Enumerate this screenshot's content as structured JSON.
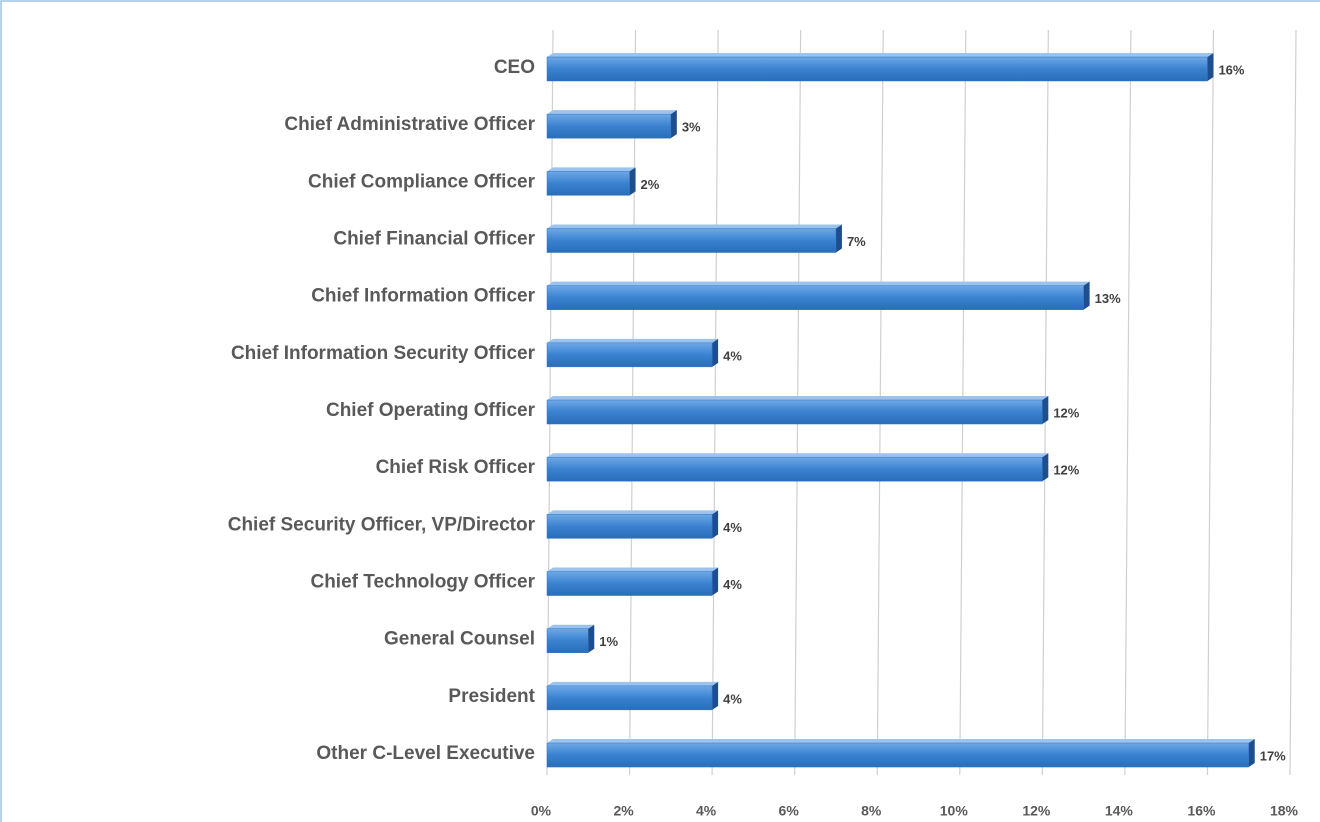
{
  "chart_data": {
    "type": "bar",
    "orientation": "horizontal",
    "categories": [
      "CEO",
      "Chief Administrative Officer",
      "Chief Compliance Officer",
      "Chief Financial Officer",
      "Chief Information Officer",
      "Chief Information Security Officer",
      "Chief Operating Officer",
      "Chief Risk Officer",
      "Chief Security Officer, VP/Director",
      "Chief Technology Officer",
      "General Counsel",
      "President",
      "Other C-Level Executive"
    ],
    "values": [
      16,
      3,
      2,
      7,
      13,
      4,
      12,
      12,
      4,
      4,
      1,
      4,
      17
    ],
    "value_labels": [
      "16%",
      "3%",
      "2%",
      "7%",
      "13%",
      "4%",
      "12%",
      "12%",
      "4%",
      "4%",
      "1%",
      "4%",
      "17%"
    ],
    "color": "#2e75c6",
    "xlim": [
      0,
      18
    ],
    "xticks": [
      {
        "value": 0,
        "label": "0%"
      },
      {
        "value": 2,
        "label": "2%"
      },
      {
        "value": 4,
        "label": "4%"
      },
      {
        "value": 6,
        "label": "6%"
      },
      {
        "value": 8,
        "label": "8%"
      },
      {
        "value": 10,
        "label": "10%"
      },
      {
        "value": 12,
        "label": "12%"
      },
      {
        "value": 14,
        "label": "14%"
      },
      {
        "value": 16,
        "label": "16%"
      },
      {
        "value": 18,
        "label": "18%"
      }
    ],
    "grid": true
  }
}
